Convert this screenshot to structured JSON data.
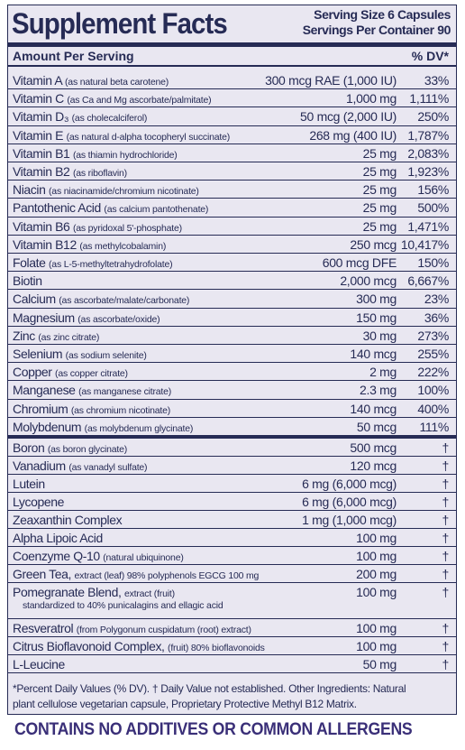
{
  "header": {
    "title": "Supplement Facts",
    "serving_size": "Serving Size 6 Capsules",
    "servings_per_container": "Servings Per Container 90"
  },
  "column_headers": {
    "amount": "Amount Per Serving",
    "dv": "% DV*"
  },
  "rows": [
    {
      "name": "Vitamin A",
      "note": "(as natural beta carotene)",
      "amount": "300 mcg RAE (1,000 IU)",
      "dv": "33%"
    },
    {
      "name": "Vitamin C",
      "note": "(as Ca and Mg ascorbate/palmitate)",
      "amount": "1,000 mg",
      "dv": "1,111%"
    },
    {
      "name": "Vitamin D₃",
      "note": "(as cholecalciferol)",
      "amount": "50 mcg (2,000 IU)",
      "dv": "250%"
    },
    {
      "name": "Vitamin E",
      "note": "(as natural d-alpha tocopheryl succinate)",
      "amount": "268 mg (400 IU)",
      "dv": "1,787%"
    },
    {
      "name": "Vitamin B1",
      "note": "(as thiamin hydrochloride)",
      "amount": "25 mg",
      "dv": "2,083%"
    },
    {
      "name": "Vitamin B2",
      "note": "(as riboflavin)",
      "amount": "25 mg",
      "dv": "1,923%"
    },
    {
      "name": "Niacin",
      "note": "(as niacinamide/chromium nicotinate)",
      "amount": "25 mg",
      "dv": "156%"
    },
    {
      "name": "Pantothenic Acid",
      "note": "(as calcium pantothenate)",
      "amount": "25 mg",
      "dv": "500%"
    },
    {
      "name": "Vitamin B6",
      "note": "(as pyridoxal 5'-phosphate)",
      "amount": "25 mg",
      "dv": "1,471%"
    },
    {
      "name": "Vitamin B12",
      "note": "(as methylcobalamin)",
      "amount": "250 mcg",
      "dv": "10,417%"
    },
    {
      "name": "Folate",
      "note": "(as L-5-methyltetrahydrofolate)",
      "amount": "600 mcg DFE",
      "dv": "150%"
    },
    {
      "name": "Biotin",
      "amount": "2,000 mcg",
      "dv": "6,667%"
    },
    {
      "name": "Calcium",
      "note": "(as ascorbate/malate/carbonate)",
      "amount": "300 mg",
      "dv": "23%"
    },
    {
      "name": "Magnesium",
      "note": "(as ascorbate/oxide)",
      "amount": "150 mg",
      "dv": "36%"
    },
    {
      "name": "Zinc",
      "note": "(as zinc citrate)",
      "amount": "30 mg",
      "dv": "273%"
    },
    {
      "name": "Selenium",
      "note": "(as sodium selenite)",
      "amount": "140 mcg",
      "dv": "255%"
    },
    {
      "name": "Copper",
      "note": "(as copper citrate)",
      "amount": "2 mg",
      "dv": "222%"
    },
    {
      "name": "Manganese",
      "note": "(as manganese citrate)",
      "amount": "2.3 mg",
      "dv": "100%"
    },
    {
      "name": "Chromium",
      "note": "(as chromium nicotinate)",
      "amount": "140 mcg",
      "dv": "400%"
    },
    {
      "name": "Molybdenum",
      "note": "(as molybdenum glycinate)",
      "amount": "50 mcg",
      "dv": "111%"
    }
  ],
  "other_rows": [
    {
      "name": "Boron",
      "note": "(as boron glycinate)",
      "amount": "500 mcg",
      "dv": "†"
    },
    {
      "name": "Vanadium",
      "note": "(as vanadyl sulfate)",
      "amount": "120 mcg",
      "dv": "†"
    },
    {
      "name": "Lutein",
      "amount": "6 mg (6,000 mcg)",
      "dv": "†"
    },
    {
      "name": "Lycopene",
      "amount": "6 mg (6,000 mcg)",
      "dv": "†"
    },
    {
      "name": "Zeaxanthin Complex",
      "amount": "1 mg (1,000 mcg)",
      "dv": "†"
    },
    {
      "name": "Alpha Lipoic Acid",
      "amount": "100 mg",
      "dv": "†"
    },
    {
      "name": "Coenzyme Q-10",
      "note": "(natural ubiquinone)",
      "amount": "100 mg",
      "dv": "†"
    },
    {
      "name": "Green Tea,",
      "note": "extract (leaf) 98% polyphenols EGCG  100 mg",
      "amount": "200 mg",
      "dv": "†"
    },
    {
      "name": "Pomegranate Blend,",
      "note": "extract (fruit)",
      "note_line2": "standardized to 40% punicalagins and ellagic acid",
      "amount": "100 mg",
      "dv": "†"
    },
    {
      "name": "Resveratrol",
      "note": "(from Polygonum cuspidatum (root) extract)",
      "amount": "100 mg",
      "dv": "†"
    },
    {
      "name": "Citrus Bioflavonoid Complex,",
      "note": "(fruit) 80% bioflavonoids",
      "amount": "100 mg",
      "dv": "†"
    },
    {
      "name": "L-Leucine",
      "amount": "50 mg",
      "dv": "†"
    }
  ],
  "footnote": [
    "*Percent Daily Values (% DV). † Daily Value not established.  Other Ingredients: Natural",
    "plant cellulose vegetarian capsule, Proprietary Protective Methyl B12 Matrix."
  ],
  "banner": "CONTAINS NO ADDITIVES OR COMMON ALLERGENS"
}
